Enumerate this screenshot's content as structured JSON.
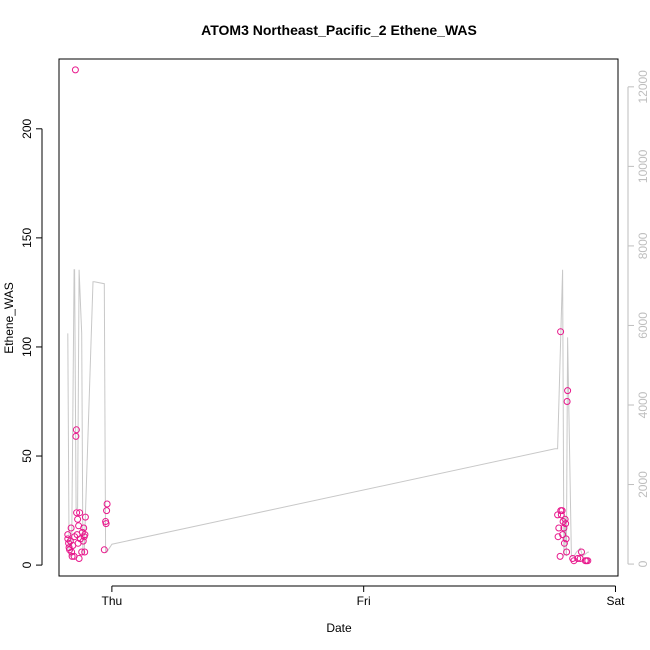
{
  "chart_data": {
    "type": "scatter",
    "title": "ATOM3 Northeast_Pacific_2 Ethene_WAS",
    "xlabel": "Date",
    "ylabel": "Ethene_WAS",
    "x_ticks": [
      {
        "label": "Thu",
        "value": 0.0
      },
      {
        "label": "Fri",
        "value": 1.0
      },
      {
        "label": "Sat",
        "value": 2.0
      }
    ],
    "xlim": [
      -0.21,
      2.01
    ],
    "ylim": [
      -5,
      232
    ],
    "y_ticks": [
      0,
      50,
      100,
      150,
      200
    ],
    "y2lim": [
      -300,
      12700
    ],
    "y2_ticks": [
      0,
      2000,
      4000,
      6000,
      8000,
      10000,
      12000
    ],
    "colors": {
      "points": "#e8188c",
      "line": "#c8c8c8",
      "axis": "#000000",
      "axis_right": "#bebebe"
    },
    "series": [
      {
        "type": "scatter",
        "axis": "left",
        "points": [
          [
            -0.175,
            14
          ],
          [
            -0.175,
            12
          ],
          [
            -0.172,
            10
          ],
          [
            -0.17,
            8
          ],
          [
            -0.168,
            7
          ],
          [
            -0.165,
            11
          ],
          [
            -0.162,
            17
          ],
          [
            -0.16,
            6
          ],
          [
            -0.158,
            4
          ],
          [
            -0.155,
            9
          ],
          [
            -0.15,
            4
          ],
          [
            -0.148,
            13
          ],
          [
            -0.145,
            227
          ],
          [
            -0.143,
            59
          ],
          [
            -0.141,
            62
          ],
          [
            -0.14,
            24
          ],
          [
            -0.138,
            14
          ],
          [
            -0.136,
            21
          ],
          [
            -0.134,
            10
          ],
          [
            -0.132,
            18
          ],
          [
            -0.13,
            3
          ],
          [
            -0.128,
            24
          ],
          [
            -0.125,
            12
          ],
          [
            -0.12,
            6
          ],
          [
            -0.117,
            15
          ],
          [
            -0.114,
            11
          ],
          [
            -0.112,
            17
          ],
          [
            -0.11,
            13
          ],
          [
            -0.108,
            6
          ],
          [
            -0.107,
            14
          ],
          [
            -0.105,
            22
          ],
          [
            -0.03,
            7
          ],
          [
            -0.025,
            20
          ],
          [
            -0.023,
            19
          ],
          [
            -0.021,
            25
          ],
          [
            -0.019,
            28
          ],
          [
            1.77,
            23
          ],
          [
            1.772,
            13
          ],
          [
            1.775,
            17
          ],
          [
            1.78,
            4
          ],
          [
            1.782,
            107
          ],
          [
            1.783,
            25
          ],
          [
            1.785,
            23
          ],
          [
            1.788,
            25
          ],
          [
            1.79,
            14
          ],
          [
            1.792,
            20
          ],
          [
            1.795,
            17
          ],
          [
            1.797,
            10
          ],
          [
            1.8,
            21
          ],
          [
            1.802,
            19
          ],
          [
            1.804,
            12
          ],
          [
            1.806,
            6
          ],
          [
            1.808,
            75
          ],
          [
            1.81,
            80
          ],
          [
            1.83,
            3
          ],
          [
            1.835,
            2
          ],
          [
            1.85,
            3
          ],
          [
            1.86,
            3
          ],
          [
            1.865,
            6
          ],
          [
            1.88,
            2
          ],
          [
            1.885,
            2
          ],
          [
            1.89,
            2
          ]
        ]
      },
      {
        "type": "line",
        "axis": "right",
        "points": [
          [
            -0.175,
            5800
          ],
          [
            -0.17,
            200
          ],
          [
            -0.16,
            200
          ],
          [
            -0.15,
            7400
          ],
          [
            -0.148,
            7400
          ],
          [
            -0.142,
            1400
          ],
          [
            -0.136,
            1400
          ],
          [
            -0.13,
            7400
          ],
          [
            -0.127,
            6900
          ],
          [
            -0.124,
            6400
          ],
          [
            -0.12,
            5800
          ],
          [
            -0.115,
            300
          ],
          [
            -0.11,
            300
          ],
          [
            -0.075,
            7100
          ],
          [
            -0.07,
            7100
          ],
          [
            -0.03,
            7050
          ],
          [
            -0.025,
            300
          ],
          [
            -0.02,
            300
          ],
          [
            0.0,
            500
          ],
          [
            1.76,
            2900
          ],
          [
            1.77,
            2900
          ],
          [
            1.79,
            7400
          ],
          [
            1.795,
            200
          ],
          [
            1.8,
            1200
          ],
          [
            1.805,
            200
          ],
          [
            1.81,
            5700
          ],
          [
            1.825,
            200
          ],
          [
            1.835,
            200
          ],
          [
            1.845,
            300
          ],
          [
            1.86,
            400
          ],
          [
            1.87,
            200
          ],
          [
            1.89,
            300
          ],
          [
            1.895,
            300
          ]
        ]
      }
    ]
  }
}
